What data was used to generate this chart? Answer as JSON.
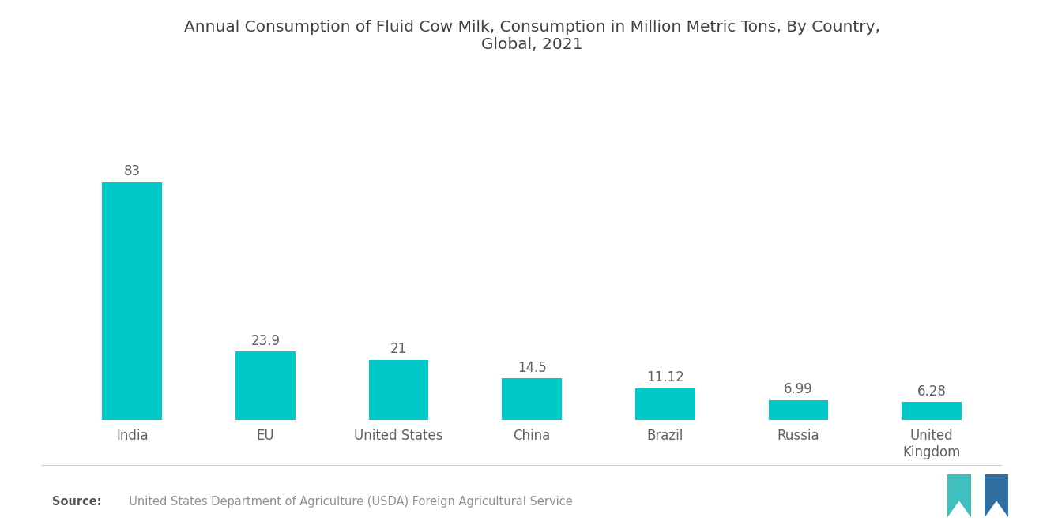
{
  "title": "Annual Consumption of Fluid Cow Milk, Consumption in Million Metric Tons, By Country,\nGlobal, 2021",
  "categories": [
    "India",
    "EU",
    "United States",
    "China",
    "Brazil",
    "Russia",
    "United\nKingdom"
  ],
  "values": [
    83,
    23.9,
    21,
    14.5,
    11.12,
    6.99,
    6.28
  ],
  "labels": [
    "83",
    "23.9",
    "21",
    "14.5",
    "11.12",
    "6.99",
    "6.28"
  ],
  "bar_color": "#00C9C8",
  "background_color": "#ffffff",
  "title_color": "#404040",
  "label_color": "#606060",
  "source_bold": "Source:",
  "source_text": "  United States Department of Agriculture (USDA) Foreign Agricultural Service",
  "ylim": [
    0,
    120
  ],
  "bar_width": 0.45,
  "title_fontsize": 14.5,
  "label_fontsize": 12,
  "tick_fontsize": 12,
  "source_fontsize": 10.5
}
